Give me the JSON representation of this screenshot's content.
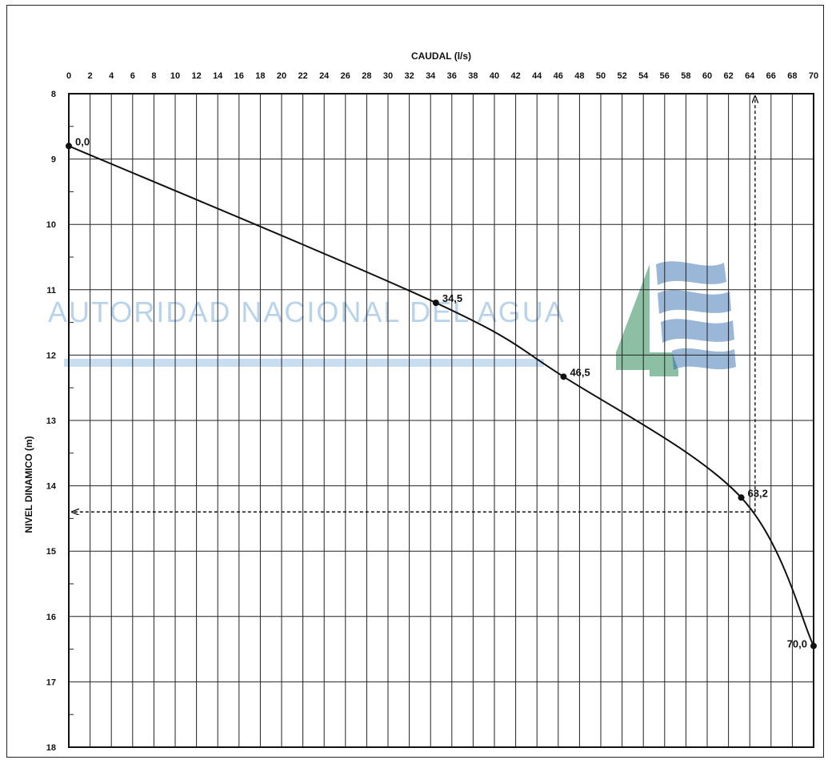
{
  "chart_data": {
    "type": "line",
    "title": "",
    "xlabel": "CAUDAL (l/s)",
    "ylabel": "NIVEL DINAMICO (m)",
    "xlim": [
      0,
      70
    ],
    "ylim": [
      8,
      18
    ],
    "y_inverted": true,
    "x_axis_position": "top",
    "x_ticks": [
      0,
      2,
      4,
      6,
      8,
      10,
      12,
      14,
      16,
      18,
      20,
      22,
      24,
      26,
      28,
      30,
      32,
      34,
      36,
      38,
      40,
      42,
      44,
      46,
      48,
      50,
      52,
      54,
      56,
      58,
      60,
      62,
      64,
      66,
      68,
      70
    ],
    "y_ticks": [
      8,
      9,
      10,
      11,
      12,
      13,
      14,
      15,
      16,
      17,
      18
    ],
    "grid": true,
    "series": [
      {
        "x": [
          0,
          34.5,
          46.5,
          63.2,
          70.0
        ],
        "y": [
          8.8,
          11.2,
          12.33,
          14.18,
          16.45
        ],
        "point_labels": [
          "0,0",
          "34,5",
          "46,5",
          "63,2",
          "70,0"
        ]
      }
    ],
    "annotations": [
      {
        "type": "dashed-arrow",
        "description": "vertical dashed guide from curve up to top axis",
        "from": [
          64.5,
          14.4
        ],
        "to": [
          64.5,
          8.0
        ]
      },
      {
        "type": "dashed-arrow",
        "description": "horizontal dashed guide from curve left to y axis",
        "from": [
          64.5,
          14.4
        ],
        "to": [
          0,
          14.4
        ]
      }
    ],
    "watermark": {
      "text": "AUTORIDAD   NACIONAL   DEL   AGUA",
      "colors": [
        "#b9d3ea",
        "#2e8b57",
        "#1f5fa8"
      ]
    }
  }
}
